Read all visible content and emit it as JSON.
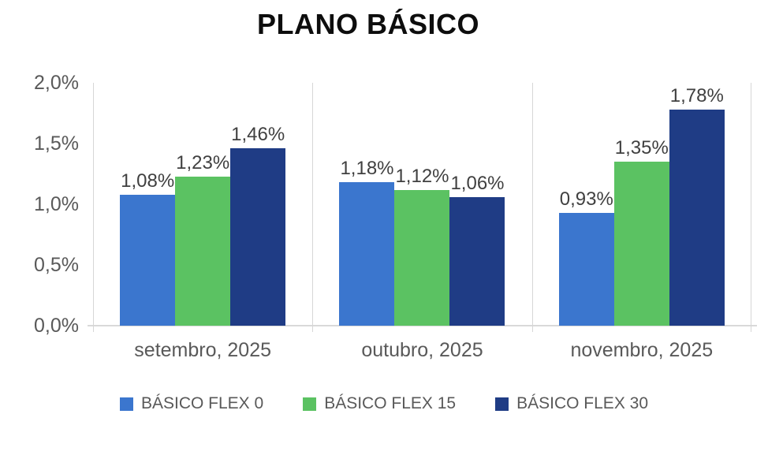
{
  "title": "PLANO BÁSICO",
  "colors": {
    "series_blue": "#3B76CE",
    "series_green": "#5BC262",
    "series_navy": "#1F3C85",
    "gridline": "#D9D9D9",
    "axis_text": "#595959",
    "data_label_text": "#404040",
    "title_text": "#0D0D0D",
    "background": "#FFFFFF"
  },
  "chart_data": {
    "type": "bar",
    "title": "PLANO BÁSICO",
    "categories": [
      "setembro, 2025",
      "outubro, 2025",
      "novembro, 2025"
    ],
    "series": [
      {
        "name": "BÁSICO FLEX 0",
        "color": "#3B76CE",
        "values": [
          1.08,
          1.18,
          0.93
        ],
        "value_labels": [
          "1,08%",
          "1,18%",
          "0,93%"
        ]
      },
      {
        "name": "BÁSICO FLEX 15",
        "color": "#5BC262",
        "values": [
          1.23,
          1.12,
          1.35
        ],
        "value_labels": [
          "1,23%",
          "1,12%",
          "1,35%"
        ]
      },
      {
        "name": "BÁSICO FLEX 30",
        "color": "#1F3C85",
        "values": [
          1.46,
          1.06,
          1.78
        ],
        "value_labels": [
          "1,46%",
          "1,06%",
          "1,78%"
        ]
      }
    ],
    "xlabel": "",
    "ylabel": "",
    "ylim": [
      0,
      2.0
    ],
    "yticks": [
      {
        "value": 0.0,
        "label": "0,0%"
      },
      {
        "value": 0.5,
        "label": "0,5%"
      },
      {
        "value": 1.0,
        "label": "1,0%"
      },
      {
        "value": 1.5,
        "label": "1,5%"
      },
      {
        "value": 2.0,
        "label": "2,0%"
      }
    ],
    "grid": "vertical-category-separators-only",
    "legend_position": "bottom"
  }
}
